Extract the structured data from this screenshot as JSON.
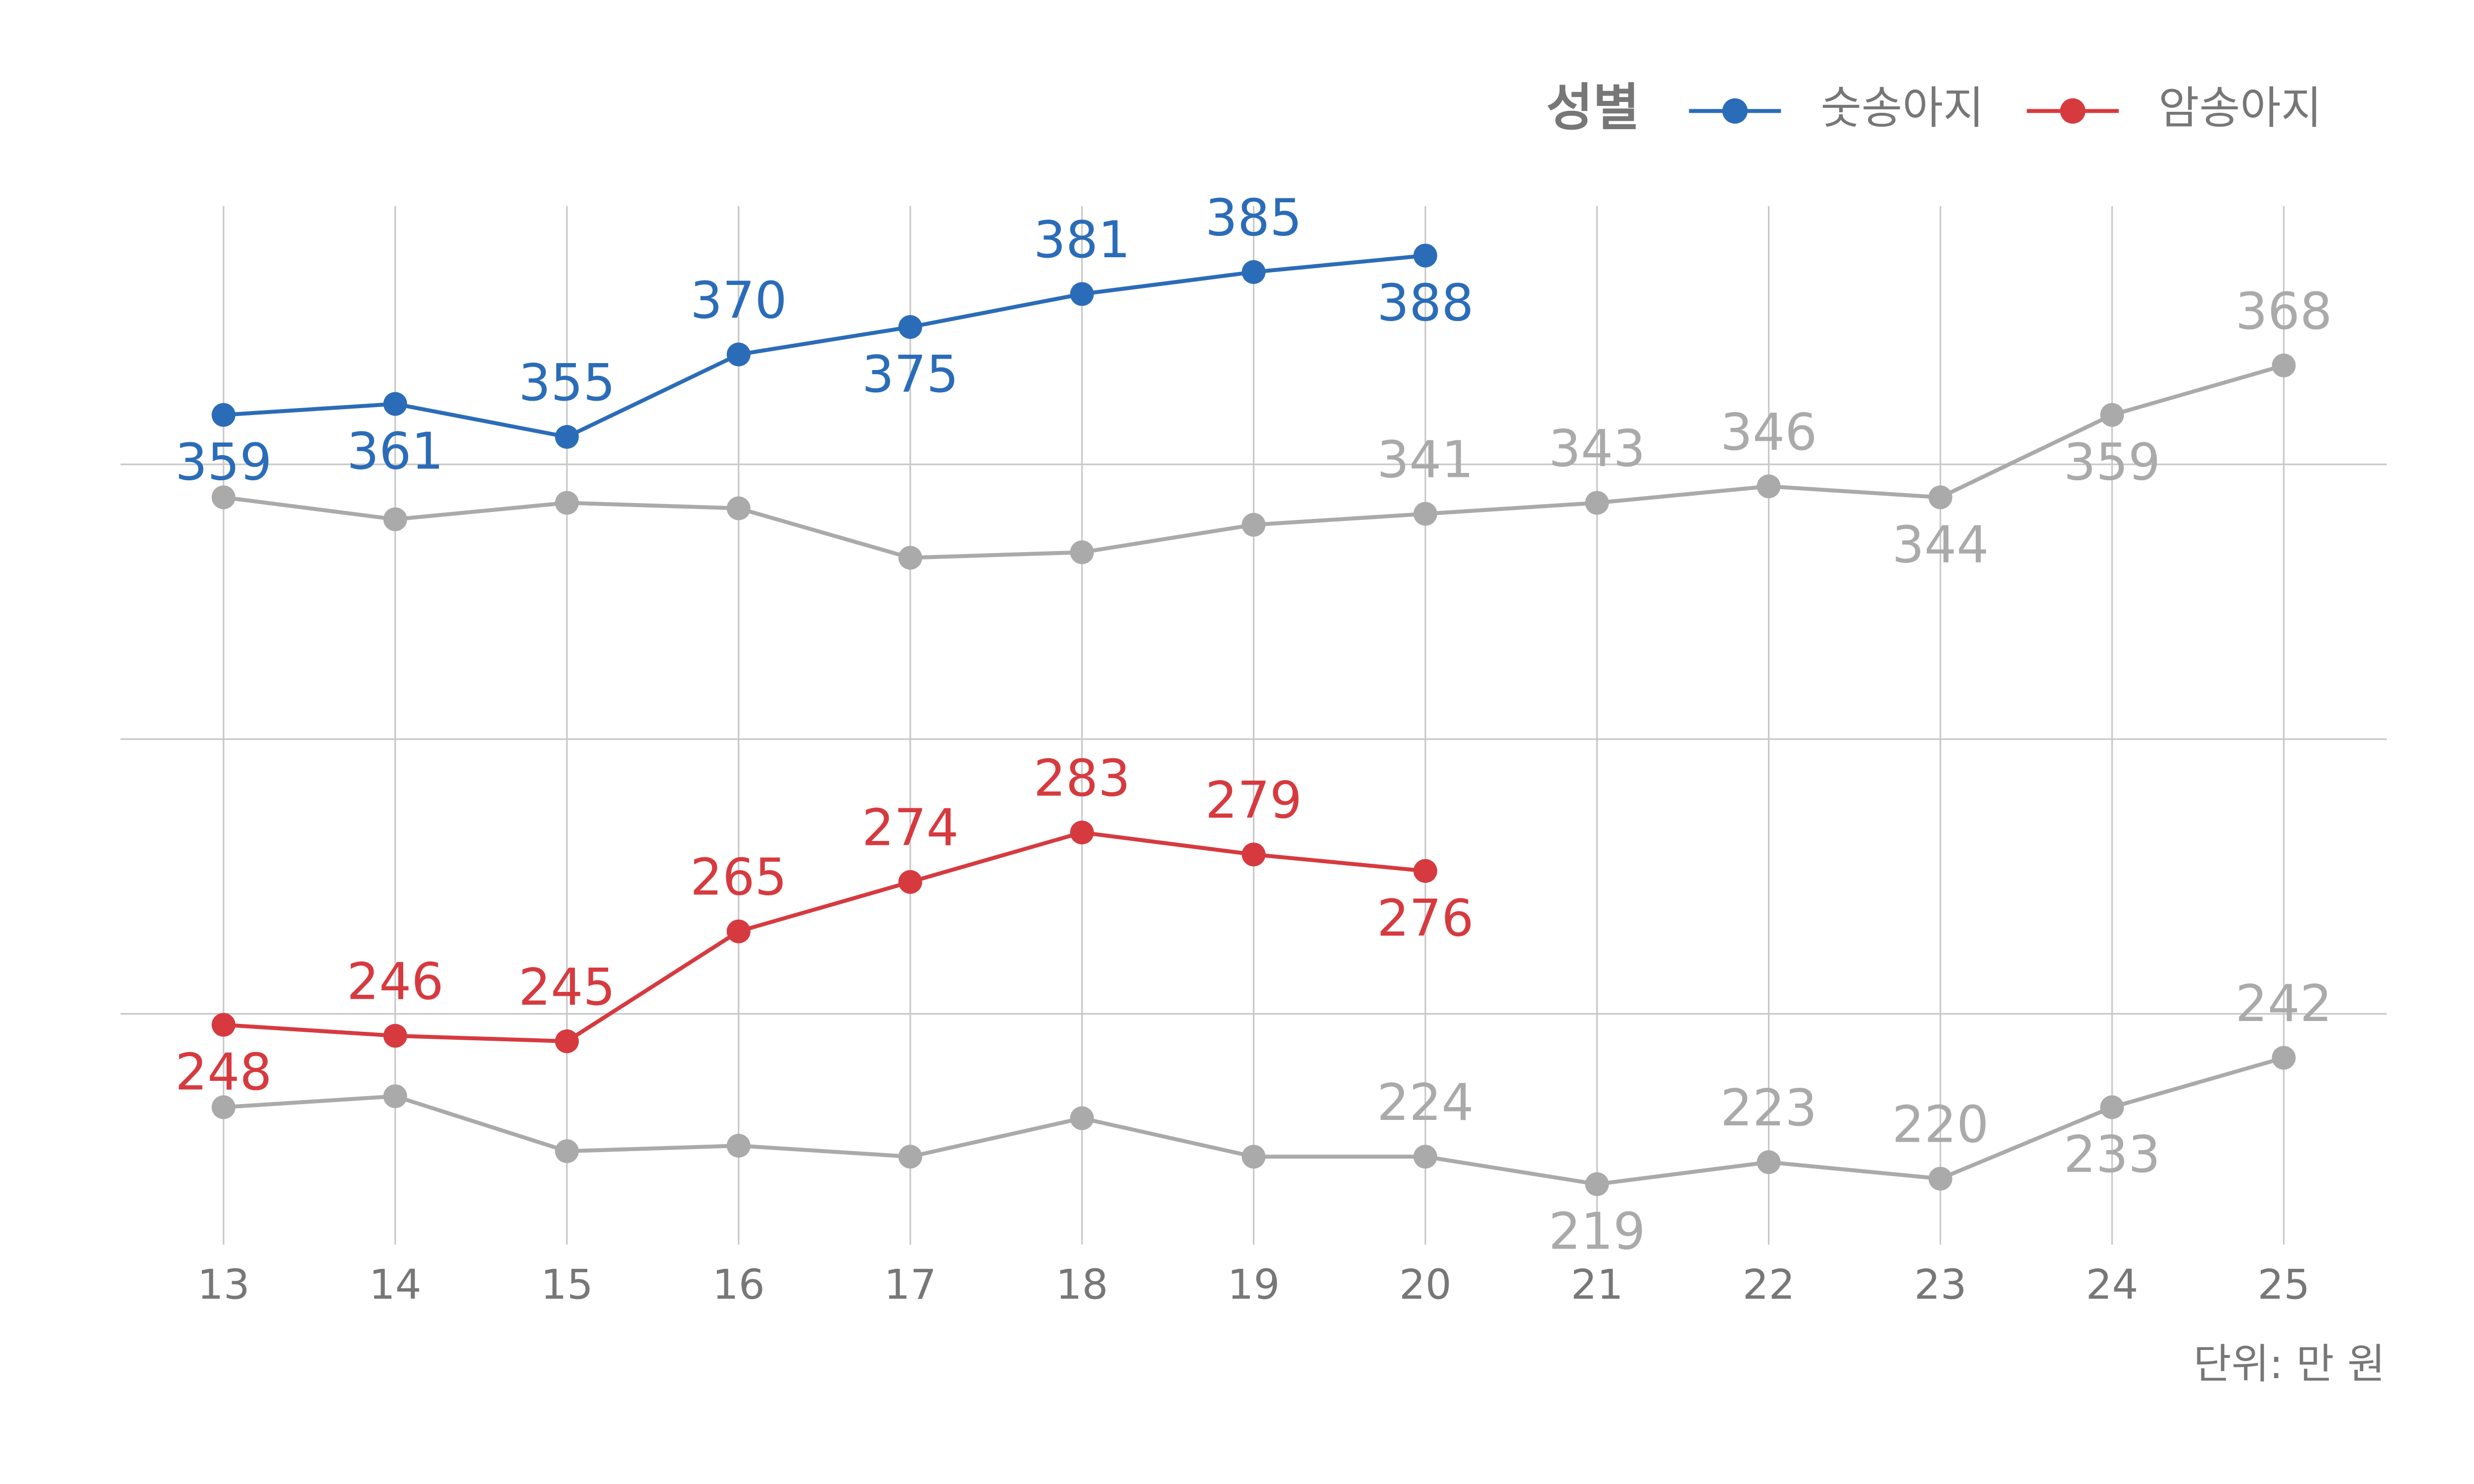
{
  "chart_data": {
    "type": "line",
    "legend_title": "성별",
    "caption": "단위: 만 원",
    "x": [
      13,
      14,
      15,
      16,
      17,
      18,
      19,
      20,
      21,
      22,
      23,
      24,
      25
    ],
    "xlim": [
      12.4,
      25.6
    ],
    "xticks": [
      13,
      14,
      15,
      16,
      17,
      18,
      19,
      20,
      21,
      22,
      23,
      24,
      25
    ],
    "ylim": [
      208,
      397
    ],
    "yticks": [
      250,
      300,
      350
    ],
    "grid": true,
    "legend": "top-right",
    "series": [
      {
        "color": "#aaaaaa",
        "values": [
          344,
          340,
          343,
          342,
          333,
          334,
          339,
          341,
          343,
          346,
          344,
          359,
          368
        ],
        "value_labels": [
          null,
          null,
          null,
          null,
          null,
          null,
          null,
          "341",
          "343",
          "346",
          "344",
          "359",
          "368"
        ]
      },
      {
        "color": "#aaaaaa",
        "values": [
          233,
          235,
          225,
          226,
          224,
          231,
          224,
          224,
          219,
          223,
          220,
          233,
          242
        ],
        "value_labels": [
          null,
          null,
          null,
          null,
          null,
          null,
          null,
          "224",
          "219",
          "223",
          "220",
          "233",
          "242"
        ]
      },
      {
        "name": "숫송아지",
        "color": "#2b6cb8",
        "values": [
          359,
          361,
          355,
          370,
          375,
          381,
          385,
          388,
          null,
          null,
          null,
          null,
          null
        ]
      },
      {
        "name": "암송아지",
        "color": "#d63a3f",
        "values": [
          248,
          246,
          245,
          265,
          274,
          283,
          279,
          276,
          null,
          null,
          null,
          null,
          null
        ]
      }
    ]
  }
}
